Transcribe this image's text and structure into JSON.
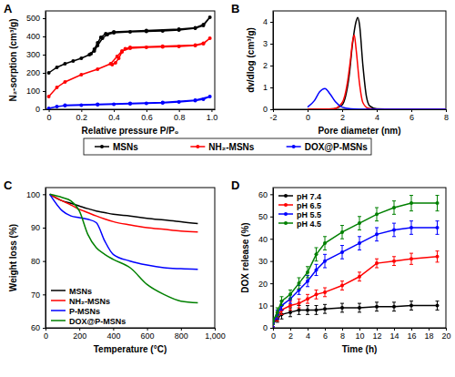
{
  "chart_data": [
    {
      "type": "line",
      "title": "A",
      "xlabel": "Relative pressure P/P₀",
      "ylabel": "N₂-sorption (cm³/g)",
      "xlim": [
        -0.02,
        1.02
      ],
      "xticks": [
        0,
        0.2,
        0.4,
        0.6,
        0.8,
        {
          "value": 1,
          "label": "1.0"
        }
      ],
      "ylim": [
        0,
        540
      ],
      "yticks": [
        0,
        100,
        200,
        300,
        400,
        500
      ],
      "marker": "circle",
      "legend": "bottom",
      "series": [
        {
          "name": "MSNs",
          "color": "#000000",
          "x": [
            0,
            0.05,
            0.1,
            0.15,
            0.2,
            0.25,
            0.28,
            0.3,
            0.33,
            0.36,
            0.4,
            0.5,
            0.6,
            0.7,
            0.8,
            0.9,
            0.95,
            0.99,
            0.95,
            0.9,
            0.8,
            0.6,
            0.4,
            0.35,
            0.32,
            0.3,
            0.28,
            0.26
          ],
          "values": [
            200,
            230,
            250,
            265,
            280,
            300,
            320,
            350,
            390,
            410,
            420,
            425,
            428,
            430,
            435,
            445,
            460,
            505,
            465,
            448,
            440,
            432,
            425,
            415,
            395,
            365,
            330,
            305
          ]
        },
        {
          "name": "NH₂-MSNs",
          "color": "#ff0000",
          "x": [
            0,
            0.05,
            0.1,
            0.2,
            0.3,
            0.38,
            0.42,
            0.45,
            0.5,
            0.6,
            0.7,
            0.8,
            0.9,
            0.95,
            0.99,
            0.95,
            0.9,
            0.7,
            0.5,
            0.47,
            0.45,
            0.43,
            0.41,
            0.39
          ],
          "values": [
            70,
            120,
            150,
            190,
            220,
            250,
            290,
            320,
            335,
            340,
            342,
            345,
            350,
            360,
            390,
            362,
            352,
            346,
            340,
            333,
            315,
            280,
            255,
            245
          ]
        },
        {
          "name": "DOX@P-MSNs",
          "color": "#0000ff",
          "x": [
            0,
            0.05,
            0.1,
            0.2,
            0.3,
            0.4,
            0.5,
            0.6,
            0.7,
            0.8,
            0.9,
            0.95,
            0.99,
            0.9,
            0.7,
            0.5,
            0.3,
            0.1
          ],
          "values": [
            5,
            15,
            20,
            23,
            25,
            28,
            30,
            33,
            35,
            40,
            48,
            55,
            70,
            50,
            38,
            32,
            27,
            22
          ]
        }
      ]
    },
    {
      "type": "line",
      "title": "B",
      "xlabel": "Pore diameter (nm)",
      "ylabel": "dv/dlog (cm³/g)",
      "xlim": [
        -2,
        8
      ],
      "xticks": [
        -2,
        0,
        2,
        4,
        6,
        8
      ],
      "ylim": [
        0,
        4.5
      ],
      "yticks": [
        0,
        1,
        2,
        3,
        4
      ],
      "series": [
        {
          "color": "#000000",
          "x": [
            0,
            0.5,
            1,
            1.5,
            2,
            2.2,
            2.4,
            2.6,
            2.8,
            2.9,
            3,
            3.2,
            3.4,
            3.6,
            4,
            5,
            6,
            8
          ],
          "values": [
            0,
            0,
            0,
            0.02,
            0.2,
            0.6,
            1.5,
            3,
            4,
            4.2,
            3.9,
            2,
            0.6,
            0.15,
            0.02,
            0,
            0,
            0
          ]
        },
        {
          "color": "#ff0000",
          "x": [
            0,
            1.5,
            2,
            2.3,
            2.5,
            2.6,
            2.7,
            2.8,
            3,
            3.2,
            3.5,
            4,
            8
          ],
          "values": [
            0,
            0.02,
            0.3,
            1.2,
            2.4,
            3.1,
            3.4,
            2.8,
            1.2,
            0.3,
            0.05,
            0,
            0
          ]
        },
        {
          "color": "#0000ff",
          "x": [
            0,
            0.4,
            0.7,
            1,
            1.3,
            1.6,
            2,
            2.5,
            3,
            4,
            8
          ],
          "values": [
            0.1,
            0.4,
            0.8,
            0.95,
            0.7,
            0.35,
            0.1,
            0.02,
            0,
            0,
            0
          ]
        }
      ]
    },
    {
      "type": "line",
      "title": "C",
      "xlabel": "Temperature (°C)",
      "ylabel": "Weight loss (%)",
      "x": [
        25,
        100,
        150,
        200,
        250,
        300,
        350,
        400,
        500,
        600,
        700,
        800,
        900
      ],
      "xlim": [
        0,
        1000
      ],
      "xticks": [
        0,
        200,
        400,
        600,
        800,
        {
          "value": 1000,
          "label": "1,000"
        }
      ],
      "ylim": [
        60,
        102
      ],
      "yticks": [
        60,
        70,
        80,
        90,
        100
      ],
      "legend": "bottom-left",
      "series": [
        {
          "name": "MSNs",
          "color": "#000000",
          "values": [
            100,
            98,
            97.3,
            96.5,
            95.7,
            95,
            94.5,
            94,
            93.5,
            92.8,
            92.3,
            91.8,
            91.2
          ]
        },
        {
          "name": "NH₂-MSNs",
          "color": "#ff0000",
          "values": [
            100,
            98,
            96.8,
            95.5,
            94.5,
            93.5,
            92.6,
            91.8,
            90.8,
            90,
            89.5,
            89,
            88.7
          ]
        },
        {
          "name": "P-MSNs",
          "color": "#0000ff",
          "values": [
            100,
            95,
            93.5,
            93,
            92.5,
            91.5,
            86,
            82,
            80,
            78.8,
            78,
            77.7,
            77.5
          ]
        },
        {
          "name": "DOX@P-MSNs",
          "color": "#008000",
          "values": [
            100,
            99,
            98,
            95,
            88,
            84,
            82,
            80.5,
            78,
            73,
            70,
            68,
            67.5
          ]
        }
      ]
    },
    {
      "type": "line",
      "title": "D",
      "xlabel": "Time (h)",
      "ylabel": "DOX release (%)",
      "x": [
        0,
        0.5,
        1,
        2,
        3,
        4,
        5,
        6,
        8,
        10,
        12,
        14,
        16,
        19
      ],
      "xlim": [
        0,
        20
      ],
      "xticks": [
        0,
        2,
        4,
        6,
        8,
        10,
        12,
        14,
        16,
        18,
        20
      ],
      "ylim": [
        0,
        63
      ],
      "yticks": [
        0,
        10,
        20,
        30,
        40,
        50,
        60
      ],
      "marker": "circle",
      "legend": "top-left",
      "series": [
        {
          "name": "pH 7.4",
          "color": "#000000",
          "values": [
            2,
            4,
            6,
            7,
            8,
            8,
            8,
            8.5,
            9,
            9,
            9.5,
            9.5,
            10,
            10
          ],
          "errors": [
            1.5,
            1.5,
            2,
            2,
            2,
            2,
            2,
            2,
            2,
            2,
            2,
            2,
            2,
            2
          ]
        },
        {
          "name": "pH 6.5",
          "color": "#ff0000",
          "values": [
            2,
            5,
            8,
            10,
            11,
            13,
            15,
            16,
            19,
            23,
            29,
            30,
            31,
            32
          ],
          "errors": [
            1.5,
            2,
            2,
            2,
            2,
            2,
            2,
            2,
            2,
            2,
            2,
            2,
            2.5,
            2.5
          ]
        },
        {
          "name": "pH 5.5",
          "color": "#0000ff",
          "values": [
            2,
            6,
            10,
            13,
            17,
            21,
            26,
            30,
            34,
            38,
            42,
            44,
            45,
            45
          ],
          "errors": [
            1.5,
            2,
            2,
            2,
            2,
            2.5,
            2.5,
            3,
            3,
            3,
            3,
            3,
            3,
            3
          ]
        },
        {
          "name": "pH 4.5",
          "color": "#008000",
          "values": [
            3,
            7,
            12,
            15,
            20,
            25,
            33,
            38,
            43,
            47,
            51,
            54,
            56,
            56
          ],
          "errors": [
            1.5,
            2,
            2,
            2,
            2.5,
            2.5,
            3,
            3,
            3,
            3,
            3,
            3,
            3.5,
            3.5
          ]
        }
      ]
    }
  ]
}
